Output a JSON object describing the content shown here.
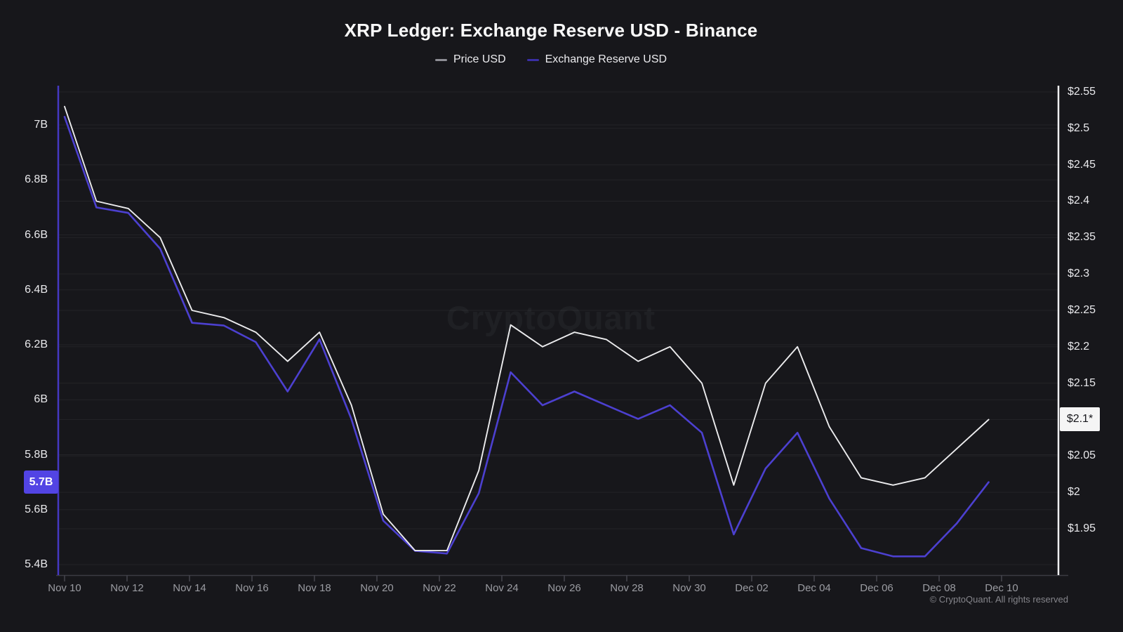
{
  "title": "XRP Ledger: Exchange Reserve USD - Binance",
  "legend": [
    {
      "label": "Price USD",
      "color": "#8e8e95"
    },
    {
      "label": "Exchange Reserve USD",
      "color": "#3a2fa6"
    }
  ],
  "watermark": "CryptoQuant",
  "footer": "© CryptoQuant. All rights reserved",
  "badges": {
    "reserve": "5.7B",
    "price": "$2.1*"
  },
  "colors": {
    "background": "#17171b",
    "price_line": "#ececee",
    "reserve_line": "#4c40d0",
    "left_axis_line": "#4538c2",
    "right_axis_line": "#f0f0f2",
    "bottom_axis_line": "#3c3c43",
    "gridline": "rgba(255,255,255,0.055)",
    "reserve_badge_bg": "#5244e4",
    "price_badge_bg": "#f5f5f5"
  },
  "chart_data": {
    "type": "line",
    "x": [
      "Nov 10",
      "Nov 11",
      "Nov 12",
      "Nov 13",
      "Nov 14",
      "Nov 15",
      "Nov 16",
      "Nov 17",
      "Nov 18",
      "Nov 19",
      "Nov 20",
      "Nov 21",
      "Nov 22",
      "Nov 23",
      "Nov 24",
      "Nov 25",
      "Nov 26",
      "Nov 27",
      "Nov 28",
      "Nov 29",
      "Nov 30",
      "Dec 01",
      "Dec 02",
      "Dec 03",
      "Dec 04",
      "Dec 05",
      "Dec 06",
      "Dec 07",
      "Dec 08",
      "Dec 09"
    ],
    "series": [
      {
        "name": "Price USD",
        "axis": "right",
        "unit": "USD",
        "values": [
          2.53,
          2.4,
          2.39,
          2.35,
          2.25,
          2.24,
          2.22,
          2.18,
          2.22,
          2.12,
          1.97,
          1.92,
          1.92,
          2.03,
          2.23,
          2.2,
          2.22,
          2.21,
          2.18,
          2.2,
          2.15,
          2.01,
          2.15,
          2.2,
          2.09,
          2.02,
          2.01,
          2.02,
          2.06,
          2.1
        ]
      },
      {
        "name": "Exchange Reserve USD",
        "axis": "left",
        "unit": "billion USD",
        "values": [
          7.03,
          6.7,
          6.68,
          6.55,
          6.28,
          6.27,
          6.21,
          6.03,
          6.22,
          5.93,
          5.56,
          5.45,
          5.44,
          5.66,
          6.1,
          5.98,
          6.03,
          5.98,
          5.93,
          5.98,
          5.88,
          5.51,
          5.75,
          5.88,
          5.64,
          5.46,
          5.43,
          5.43,
          5.55,
          5.7
        ]
      }
    ],
    "left_axis": {
      "tick_labels": [
        "7B",
        "6.8B",
        "6.6B",
        "6.4B",
        "6.2B",
        "6B",
        "5.8B",
        "5.6B",
        "5.4B"
      ],
      "tick_values": [
        7.0,
        6.8,
        6.6,
        6.4,
        6.2,
        6.0,
        5.8,
        5.6,
        5.4
      ]
    },
    "right_axis": {
      "tick_labels": [
        "$2.55",
        "$2.5",
        "$2.45",
        "$2.4",
        "$2.35",
        "$2.3",
        "$2.25",
        "$2.2",
        "$2.15",
        "$2.1",
        "$2.05",
        "$2",
        "$1.95"
      ],
      "tick_values": [
        2.55,
        2.5,
        2.45,
        2.4,
        2.35,
        2.3,
        2.25,
        2.2,
        2.15,
        2.1,
        2.05,
        2.0,
        1.95
      ]
    },
    "x_axis": {
      "tick_labels": [
        "Nov 10",
        "Nov 12",
        "Nov 14",
        "Nov 16",
        "Nov 18",
        "Nov 20",
        "Nov 22",
        "Nov 24",
        "Nov 26",
        "Nov 28",
        "Nov 30",
        "Dec 02",
        "Dec 04",
        "Dec 06",
        "Dec 08",
        "Dec 10"
      ]
    },
    "legend_position": "top",
    "grid": true
  }
}
